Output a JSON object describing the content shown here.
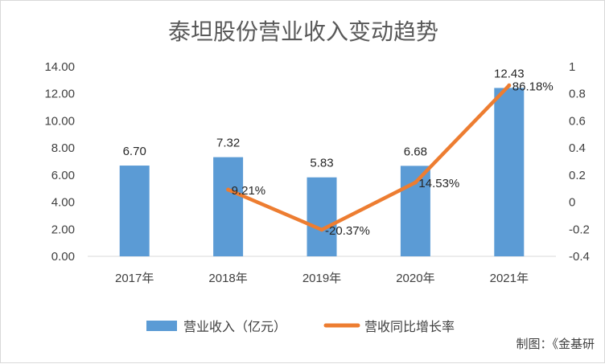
{
  "chart_data": {
    "type": "bar",
    "title": "泰坦股份营业收入变动趋势",
    "categories": [
      "2017年",
      "2018年",
      "2019年",
      "2020年",
      "2021年"
    ],
    "series": [
      {
        "name": "营业收入（亿元）",
        "type": "bar",
        "axis": "left",
        "values": [
          6.7,
          7.32,
          5.83,
          6.68,
          12.43
        ],
        "labels": [
          "6.70",
          "7.32",
          "5.83",
          "6.68",
          "12.43"
        ]
      },
      {
        "name": "营收同比增长率",
        "type": "line",
        "axis": "right",
        "values": [
          null,
          0.0921,
          -0.2037,
          0.1453,
          0.8618
        ],
        "labels": [
          "",
          "9.21%",
          "-20.37%",
          "14.53%",
          "86.18%"
        ]
      }
    ],
    "y_left": {
      "range": [
        0,
        14
      ],
      "ticks": [
        "0.00",
        "2.00",
        "4.00",
        "6.00",
        "8.00",
        "10.00",
        "12.00",
        "14.00"
      ]
    },
    "y_right": {
      "range": [
        -0.4,
        1
      ],
      "ticks": [
        "-0.4",
        "-0.2",
        "0",
        "0.2",
        "0.4",
        "0.6",
        "0.8",
        "1"
      ]
    },
    "grid": false,
    "legend": "bottom",
    "colors": {
      "bar": "#5b9bd5",
      "line": "#ed7d31"
    }
  },
  "credit": "制图：《金基研"
}
